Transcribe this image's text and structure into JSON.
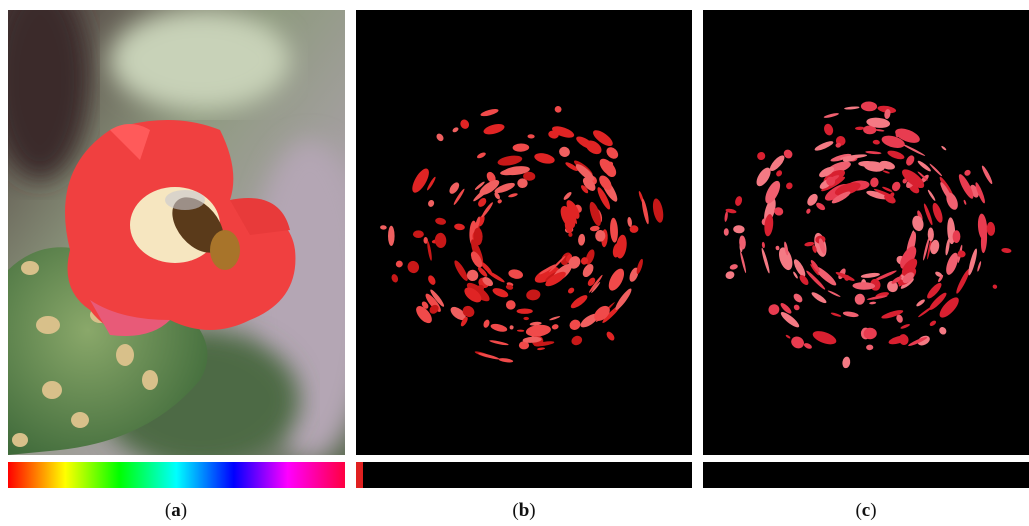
{
  "figure": {
    "panels": [
      {
        "caption_parts": [
          "(",
          "a",
          ")"
        ]
      },
      {
        "caption_parts": [
          "(",
          "b",
          ")"
        ]
      },
      {
        "caption_parts": [
          "(",
          "c",
          ")"
        ]
      }
    ]
  }
}
